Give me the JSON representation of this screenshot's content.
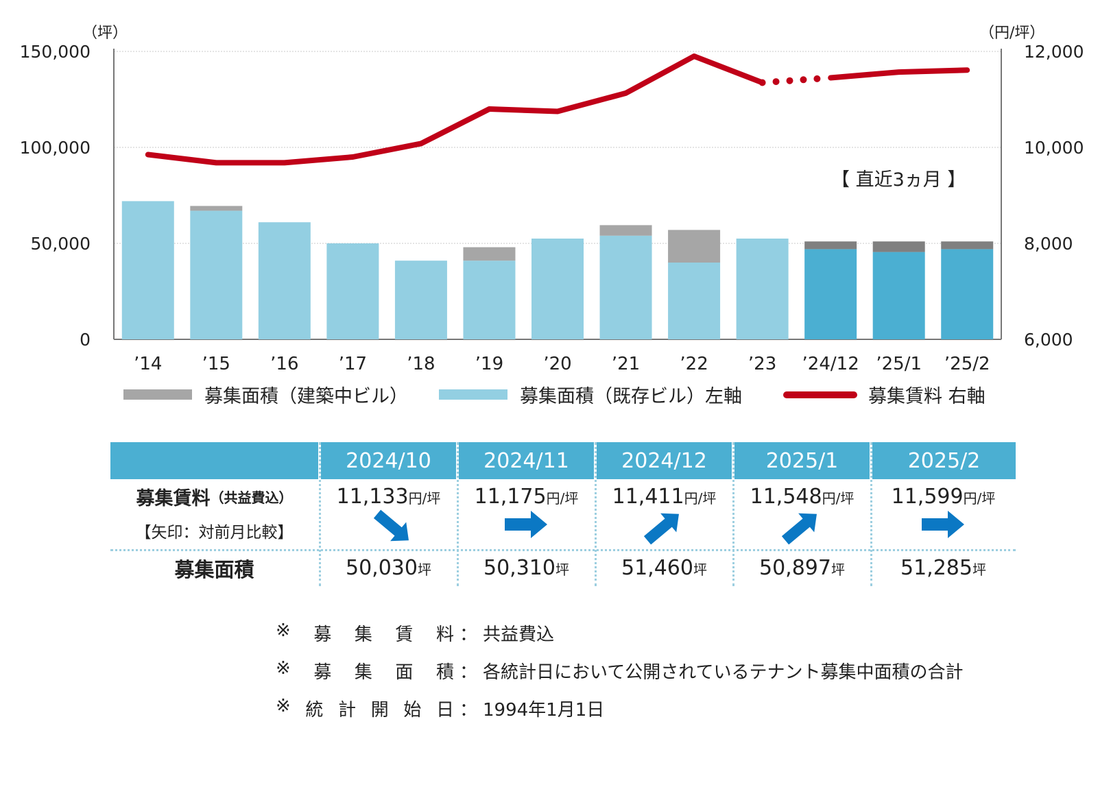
{
  "chart_data": {
    "type": "bar",
    "categories": [
      "’14",
      "’15",
      "’16",
      "’17",
      "’18",
      "’19",
      "’20",
      "’21",
      "’22",
      "’23",
      "’24/12",
      "’25/1",
      "’25/2"
    ],
    "left_axis": {
      "unit": "（坪）",
      "ylim": [
        0,
        150000
      ],
      "ticks": [
        "0",
        "50,000",
        "100,000",
        "150,000"
      ]
    },
    "right_axis": {
      "unit": "（円/坪）",
      "ylim": [
        6000,
        12000
      ],
      "ticks": [
        "6,000",
        "8,000",
        "10,000",
        "12,000"
      ]
    },
    "series": [
      {
        "name": "募集面積（既存ビル）左軸",
        "axis": "left",
        "color": "#93cfe2",
        "recent_color": "#4bafd2",
        "values": [
          72000,
          67000,
          61000,
          50000,
          41000,
          41000,
          52500,
          54000,
          40000,
          52500,
          47000,
          45500,
          47000
        ]
      },
      {
        "name": "募集面積（建築中ビル）",
        "axis": "left",
        "color": "#a6a6a6",
        "recent_color": "#808080",
        "values": [
          0,
          2500,
          0,
          0,
          0,
          7000,
          0,
          5500,
          17000,
          0,
          4000,
          5500,
          4000
        ]
      },
      {
        "name": "募集賃料 右軸",
        "axis": "right",
        "type": "line",
        "color": "#c00018",
        "values": [
          9850,
          9680,
          9680,
          9800,
          10080,
          10800,
          10750,
          11130,
          11900,
          11350,
          11450,
          11570,
          11610
        ],
        "dotted_between": [
          9,
          10
        ]
      }
    ],
    "annotation": "【 直近3ヵ月 】",
    "grid": true,
    "legend_position": "bottom"
  },
  "table": {
    "columns": [
      "2024/10",
      "2024/11",
      "2024/12",
      "2025/1",
      "2025/2"
    ],
    "rent_label": "募集賃料",
    "rent_label_sub": "（共益費込）",
    "arrow_label": "【矢印：対前月比較】",
    "rent_values": [
      "11,133",
      "11,175",
      "11,411",
      "11,548",
      "11,599"
    ],
    "rent_unit": "円/坪",
    "arrows": [
      "down",
      "flat",
      "up",
      "up",
      "flat"
    ],
    "area_label": "募集面積",
    "area_values": [
      "50,030",
      "50,310",
      "51,460",
      "50,897",
      "51,285"
    ],
    "area_unit": "坪"
  },
  "notes": [
    {
      "label": [
        "※",
        "募",
        "集",
        "賃",
        "料"
      ],
      "text": "共益費込"
    },
    {
      "label": [
        "※",
        "募",
        "集",
        "面",
        "積"
      ],
      "text": "各統計日において公開されているテナント募集中面積の合計"
    },
    {
      "label": [
        "※",
        "統",
        "計",
        "開",
        "始",
        "日"
      ],
      "text": "1994年1月1日"
    }
  ],
  "colon": "："
}
